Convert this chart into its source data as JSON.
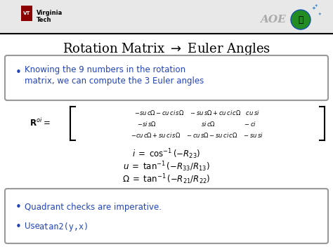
{
  "title": "Rotation Matrix $\\rightarrow$ Euler Angles",
  "title_fontsize": 13,
  "title_color": "#000000",
  "slide_bg": "#ffffff",
  "header_bg": "#e8e8e8",
  "header_line_color": "#000000",
  "bullet1_color": "#2244bb",
  "box_edgecolor": "#999999",
  "bullet2_color": "#2244bb",
  "vt_text1": "Virginia",
  "vt_text2": "Tech",
  "aoe_text": "AOE",
  "bullet1_line1": "Knowing the 9 numbers in the rotation",
  "bullet1_line2": "matrix, we can compute the 3 Euler angles",
  "bullet2a": "Quadrant checks are imperative.",
  "bullet2b_pre": "Use ",
  "bullet2b_code": "atan2(y,x)"
}
